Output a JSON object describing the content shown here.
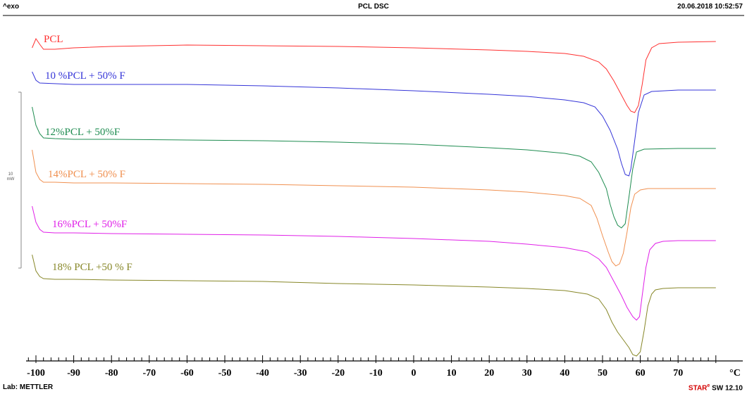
{
  "header": {
    "left": "^exo",
    "title": "PCL DSC",
    "timestamp": "20.06.2018 10:52:57"
  },
  "footer": {
    "lab": "Lab: METTLER",
    "software_brand": "STAR",
    "software_mark": "e",
    "software_version": " SW 12.10"
  },
  "chart_data": {
    "type": "line",
    "x_unit": "°C",
    "xlim": [
      -102,
      82
    ],
    "ticks": [
      -100,
      -90,
      -80,
      -70,
      -60,
      -50,
      -40,
      -30,
      -20,
      -10,
      0,
      10,
      20,
      30,
      40,
      50,
      60,
      70
    ],
    "scale_bar": {
      "value": "10",
      "unit": "mW"
    },
    "series": [
      {
        "name": "PCL",
        "color": "#ff3030",
        "points": [
          [
            -101,
            68
          ],
          [
            -100,
            55
          ],
          [
            -99,
            63
          ],
          [
            -98,
            70
          ],
          [
            -95,
            70
          ],
          [
            -90,
            68
          ],
          [
            -80,
            66
          ],
          [
            -60,
            64
          ],
          [
            -40,
            65
          ],
          [
            -20,
            66
          ],
          [
            0,
            68
          ],
          [
            20,
            71
          ],
          [
            30,
            73
          ],
          [
            40,
            76
          ],
          [
            45,
            80
          ],
          [
            49,
            88
          ],
          [
            51,
            98
          ],
          [
            53,
            115
          ],
          [
            55,
            135
          ],
          [
            56.5,
            150
          ],
          [
            57.5,
            158
          ],
          [
            58.5,
            160
          ],
          [
            59.5,
            150
          ],
          [
            60.5,
            120
          ],
          [
            61.5,
            85
          ],
          [
            63,
            68
          ],
          [
            65,
            62
          ],
          [
            70,
            60
          ],
          [
            80,
            59
          ]
        ]
      },
      {
        "name": "10 %PCL + 50% F",
        "color": "#3535d8",
        "points": [
          [
            -101,
            102
          ],
          [
            -100,
            114
          ],
          [
            -99,
            118
          ],
          [
            -90,
            120
          ],
          [
            -80,
            120
          ],
          [
            -60,
            120
          ],
          [
            -40,
            122
          ],
          [
            -20,
            125
          ],
          [
            0,
            129
          ],
          [
            20,
            134
          ],
          [
            30,
            137
          ],
          [
            40,
            142
          ],
          [
            45,
            146
          ],
          [
            48,
            152
          ],
          [
            50,
            165
          ],
          [
            52,
            185
          ],
          [
            54,
            212
          ],
          [
            55,
            232
          ],
          [
            56,
            248
          ],
          [
            57,
            250
          ],
          [
            57.5,
            240
          ],
          [
            58.5,
            200
          ],
          [
            59.5,
            160
          ],
          [
            61,
            135
          ],
          [
            63,
            130
          ],
          [
            70,
            128
          ],
          [
            80,
            128
          ]
        ]
      },
      {
        "name": "12%PCL + 50%F",
        "color": "#1e8c50",
        "points": [
          [
            -101,
            152
          ],
          [
            -100,
            178
          ],
          [
            -99,
            190
          ],
          [
            -98,
            196
          ],
          [
            -95,
            197
          ],
          [
            -90,
            198
          ],
          [
            -80,
            198
          ],
          [
            -60,
            199
          ],
          [
            -40,
            200
          ],
          [
            -20,
            202
          ],
          [
            0,
            205
          ],
          [
            20,
            210
          ],
          [
            30,
            213
          ],
          [
            40,
            218
          ],
          [
            44,
            222
          ],
          [
            47,
            230
          ],
          [
            49,
            245
          ],
          [
            51,
            268
          ],
          [
            52,
            290
          ],
          [
            53,
            308
          ],
          [
            54,
            320
          ],
          [
            55,
            324
          ],
          [
            56,
            318
          ],
          [
            57,
            280
          ],
          [
            58,
            240
          ],
          [
            59,
            216
          ],
          [
            61,
            212
          ],
          [
            70,
            211
          ],
          [
            80,
            211
          ]
        ]
      },
      {
        "name": "14%PCL + 50% F",
        "color": "#f09050",
        "points": [
          [
            -101,
            213
          ],
          [
            -100,
            245
          ],
          [
            -99,
            255
          ],
          [
            -98,
            259
          ],
          [
            -95,
            259
          ],
          [
            -90,
            260
          ],
          [
            -80,
            260
          ],
          [
            -60,
            261
          ],
          [
            -40,
            262
          ],
          [
            -20,
            264
          ],
          [
            0,
            266
          ],
          [
            20,
            270
          ],
          [
            30,
            273
          ],
          [
            40,
            278
          ],
          [
            44,
            282
          ],
          [
            47,
            292
          ],
          [
            48.5,
            310
          ],
          [
            50,
            335
          ],
          [
            51.5,
            358
          ],
          [
            52.5,
            372
          ],
          [
            53.5,
            378
          ],
          [
            54.5,
            375
          ],
          [
            55.5,
            360
          ],
          [
            56.5,
            330
          ],
          [
            57.5,
            295
          ],
          [
            58.5,
            276
          ],
          [
            60,
            270
          ],
          [
            62,
            268
          ],
          [
            70,
            268
          ],
          [
            80,
            268
          ]
        ]
      },
      {
        "name": "16%PCL + 50%F",
        "color": "#e020e8",
        "points": [
          [
            -101,
            293
          ],
          [
            -100,
            316
          ],
          [
            -99,
            326
          ],
          [
            -98,
            330
          ],
          [
            -95,
            331
          ],
          [
            -90,
            331
          ],
          [
            -80,
            332
          ],
          [
            -60,
            333
          ],
          [
            -40,
            334
          ],
          [
            -20,
            336
          ],
          [
            0,
            339
          ],
          [
            20,
            343
          ],
          [
            30,
            347
          ],
          [
            40,
            352
          ],
          [
            46,
            358
          ],
          [
            49,
            368
          ],
          [
            51,
            380
          ],
          [
            53,
            400
          ],
          [
            55,
            420
          ],
          [
            56.5,
            437
          ],
          [
            58,
            450
          ],
          [
            59,
            455
          ],
          [
            59.8,
            450
          ],
          [
            60.5,
            420
          ],
          [
            61.5,
            380
          ],
          [
            62.5,
            355
          ],
          [
            64,
            346
          ],
          [
            66,
            343
          ],
          [
            70,
            342
          ],
          [
            80,
            342
          ]
        ]
      },
      {
        "name": "18% PCL +50 % F",
        "color": "#878728",
        "points": [
          [
            -101,
            362
          ],
          [
            -100,
            385
          ],
          [
            -99,
            393
          ],
          [
            -98,
            396
          ],
          [
            -95,
            397
          ],
          [
            -90,
            397
          ],
          [
            -80,
            398
          ],
          [
            -60,
            399
          ],
          [
            -40,
            400
          ],
          [
            -20,
            403
          ],
          [
            0,
            405
          ],
          [
            20,
            408
          ],
          [
            30,
            410
          ],
          [
            40,
            413
          ],
          [
            46,
            418
          ],
          [
            49,
            425
          ],
          [
            51,
            440
          ],
          [
            52.5,
            458
          ],
          [
            54,
            472
          ],
          [
            55.5,
            483
          ],
          [
            57,
            494
          ],
          [
            58,
            504
          ],
          [
            59,
            506
          ],
          [
            60,
            500
          ],
          [
            61,
            470
          ],
          [
            62,
            435
          ],
          [
            63,
            418
          ],
          [
            64,
            412
          ],
          [
            66,
            410
          ],
          [
            70,
            409
          ],
          [
            80,
            409
          ]
        ]
      }
    ]
  }
}
